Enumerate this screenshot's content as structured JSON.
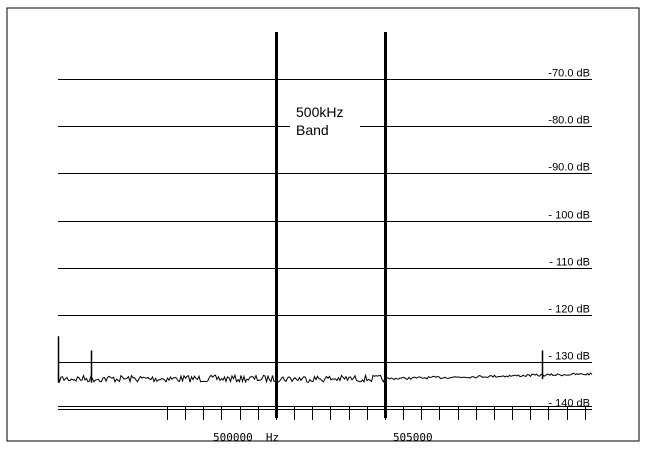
{
  "chart_data": {
    "type": "line",
    "title": "",
    "xlabel": "",
    "ylabel": "",
    "ylim": [
      -145,
      -65
    ],
    "xlim": [
      490000,
      514500
    ],
    "y_gridlines": [
      -70,
      -80,
      -90,
      -100,
      -110,
      -120,
      -130,
      -140
    ],
    "y_tick_labels": [
      "-70.0 dB",
      "-80.0 dB",
      "-90.0 dB",
      "- 100 dB",
      "- 110 dB",
      "- 120 dB",
      "- 130 dB",
      "- 140 dB"
    ],
    "x_tick_labels": [
      {
        "label": "500000  Hz",
        "value": 500000
      },
      {
        "label": "505000",
        "value": 505000
      }
    ],
    "band_markers": [
      500000,
      505000
    ],
    "annotation": {
      "line1": "500kHz",
      "line2": "Band"
    },
    "series": [
      {
        "color": "#000000",
        "noise_floor": [
          {
            "x": 490000,
            "y": -133.5
          },
          {
            "x": 505000,
            "y": -133.5
          },
          {
            "x": 514500,
            "y": -132.5
          }
        ],
        "spikes": [
          {
            "x": 490000,
            "y": -124.5
          },
          {
            "x": 491500,
            "y": -127.5
          },
          {
            "x": 500000,
            "y": -132
          },
          {
            "x": 505000,
            "y": -125.5
          },
          {
            "x": 512200,
            "y": -127.5
          }
        ]
      }
    ]
  }
}
